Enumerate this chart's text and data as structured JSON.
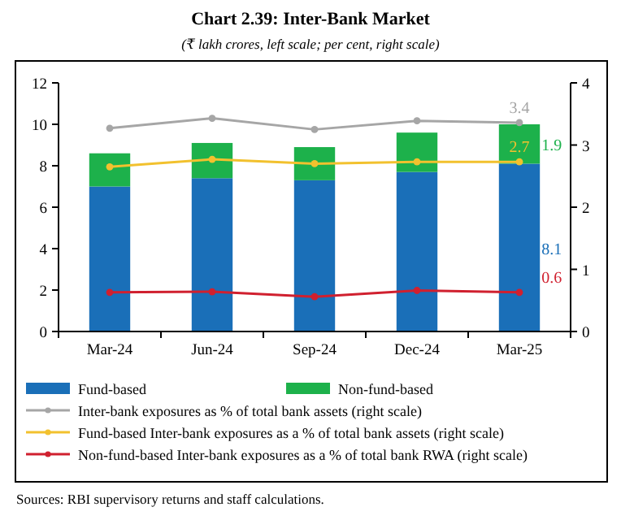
{
  "chart_data": {
    "type": "bar",
    "title": "Chart 2.39: Inter-Bank Market",
    "subtitle": "(₹ lakh crores, left scale; per cent, right scale)",
    "categories": [
      "Mar-24",
      "Jun-24",
      "Sep-24",
      "Dec-24",
      "Mar-25"
    ],
    "stacked": true,
    "series": [
      {
        "name": "Fund-based",
        "color": "#1a6fb8",
        "values": [
          7.0,
          7.4,
          7.3,
          7.7,
          8.1
        ],
        "value_labels": [
          null,
          null,
          null,
          null,
          "8.1"
        ]
      },
      {
        "name": "Non-fund-based",
        "color": "#1db14b",
        "values": [
          1.6,
          1.7,
          1.6,
          1.9,
          1.9
        ],
        "value_labels": [
          null,
          null,
          null,
          null,
          "1.9"
        ]
      },
      {
        "name": "Inter-bank exposures as % of total bank assets (right scale)",
        "type": "line",
        "axis": "y2",
        "color": "#a6a6a6",
        "values": [
          3.27,
          3.43,
          3.25,
          3.39,
          3.36
        ],
        "value_labels": [
          null,
          null,
          null,
          null,
          "3.4"
        ]
      },
      {
        "name": "Fund-based Inter-bank exposures as a % of total bank assets (right scale)",
        "type": "line",
        "axis": "y2",
        "color": "#f2c12e",
        "values": [
          2.65,
          2.77,
          2.7,
          2.73,
          2.73
        ],
        "value_labels": [
          null,
          null,
          null,
          null,
          "2.7"
        ]
      },
      {
        "name": "Non-fund-based Inter-bank exposures as a % of total bank RWA (right scale)",
        "type": "line",
        "axis": "y2",
        "color": "#d0202f",
        "values": [
          0.63,
          0.64,
          0.56,
          0.66,
          0.63
        ],
        "value_labels": [
          null,
          null,
          null,
          null,
          "0.6"
        ]
      }
    ],
    "ylim": [
      0,
      12
    ],
    "yticks": [
      0,
      2,
      4,
      6,
      8,
      10,
      12
    ],
    "y2lim": [
      0,
      4
    ],
    "y2ticks": [
      0,
      1,
      2,
      3,
      4
    ],
    "marker": "circle",
    "line_style": "solid",
    "grid": false,
    "legend": "bottom",
    "annotations": [
      "Sources: RBI supervisory returns and staff calculations."
    ]
  }
}
